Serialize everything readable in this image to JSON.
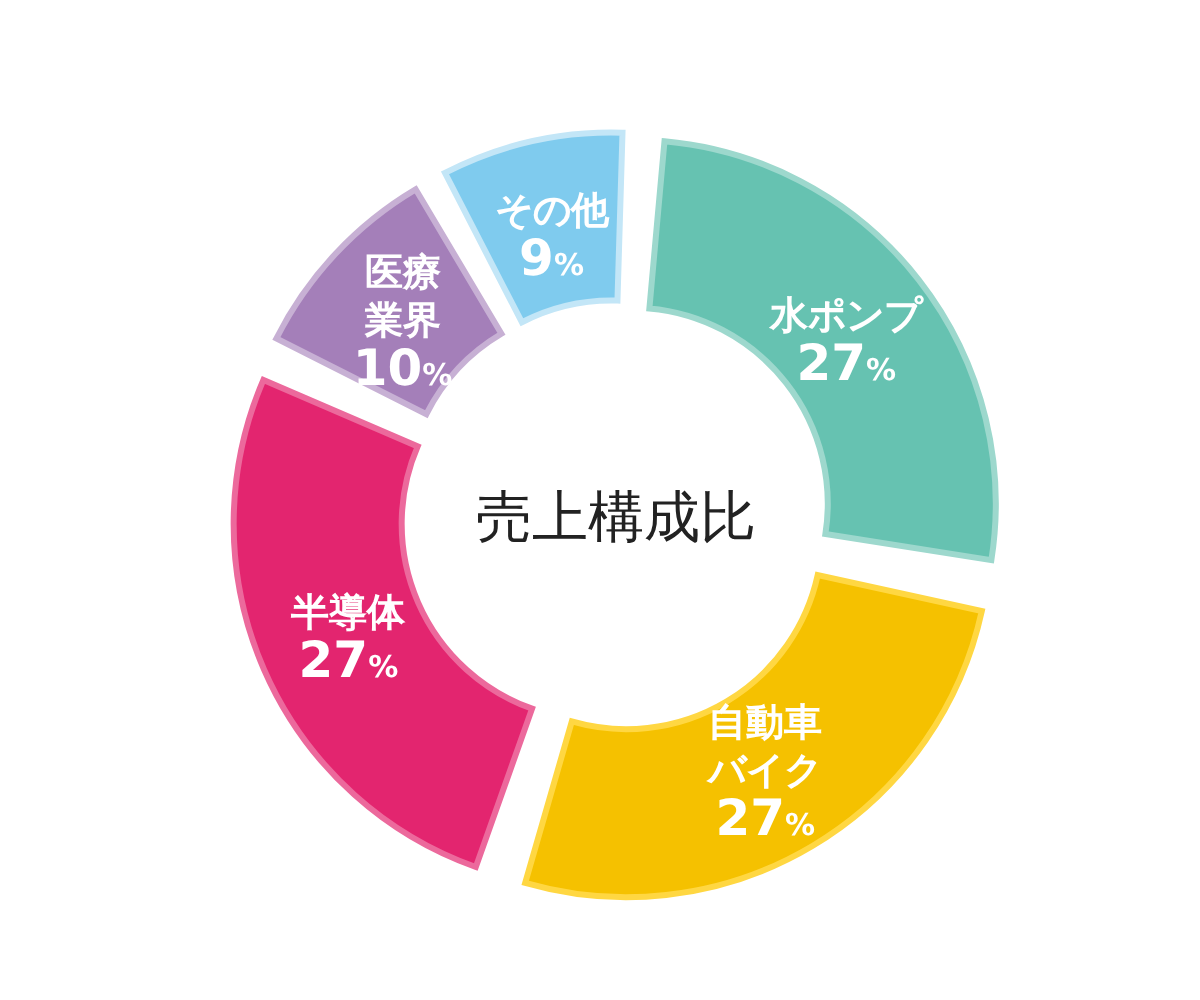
{
  "chart_data": {
    "type": "donut",
    "title": "売上構成比",
    "categories": [
      "水ポンプ",
      "自動車バイク",
      "半導体",
      "医療業界",
      "その他"
    ],
    "values": [
      27,
      27,
      27,
      10,
      9
    ],
    "colors": [
      "#66c2b1",
      "#f5c100",
      "#e3256f",
      "#a47fb9",
      "#7fcbee"
    ],
    "value_labels": [
      "27%",
      "27%",
      "27%",
      "10%",
      "9%"
    ]
  }
}
